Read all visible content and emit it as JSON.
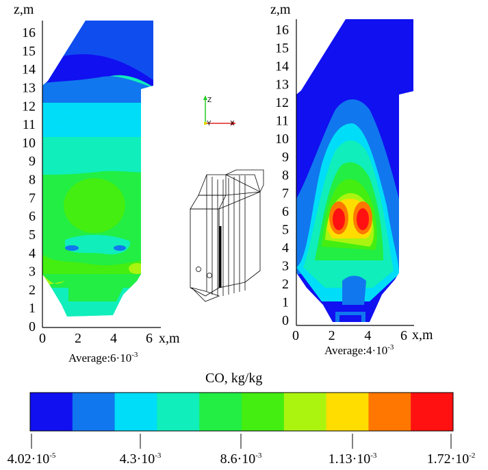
{
  "left_plot": {
    "axis_z_label": "z,m",
    "axis_x_label": "x,m",
    "z_ticks": [
      "0",
      "1",
      "2",
      "3",
      "4",
      "5",
      "6",
      "7",
      "8",
      "9",
      "10",
      "11",
      "12",
      "13",
      "14",
      "15",
      "16"
    ],
    "x_ticks": [
      "0",
      "2",
      "4",
      "6"
    ],
    "average_prefix": "Average:6·10",
    "average_exp": "-3"
  },
  "right_plot": {
    "axis_z_label": "z,m",
    "axis_x_label": "x,m",
    "z_ticks": [
      "0",
      "1",
      "2",
      "3",
      "4",
      "5",
      "6",
      "7",
      "8",
      "9",
      "10",
      "11",
      "12",
      "13",
      "14",
      "15",
      "16"
    ],
    "x_ticks": [
      "0",
      "2",
      "4",
      "6"
    ],
    "average_prefix": "Average:4·10",
    "average_exp": "-3"
  },
  "axes_triad": {
    "z": "Z",
    "y": "Y",
    "x": "X"
  },
  "colorbar": {
    "title": "CO, kg/kg",
    "colors": [
      "#1010f0",
      "#1177ee",
      "#00ddf8",
      "#10eebb",
      "#22ee44",
      "#44ee11",
      "#aaf410",
      "#ffdd00",
      "#ff7700",
      "#ff1111"
    ],
    "labels": [
      {
        "base": "4.02·10",
        "exp": "-5"
      },
      {
        "base": "4.3·10",
        "exp": "-3"
      },
      {
        "base": "8.6·10",
        "exp": "-3"
      },
      {
        "base": "1.13·10",
        "exp": "-3"
      },
      {
        "base": "1.72·10",
        "exp": "-2"
      }
    ]
  }
}
